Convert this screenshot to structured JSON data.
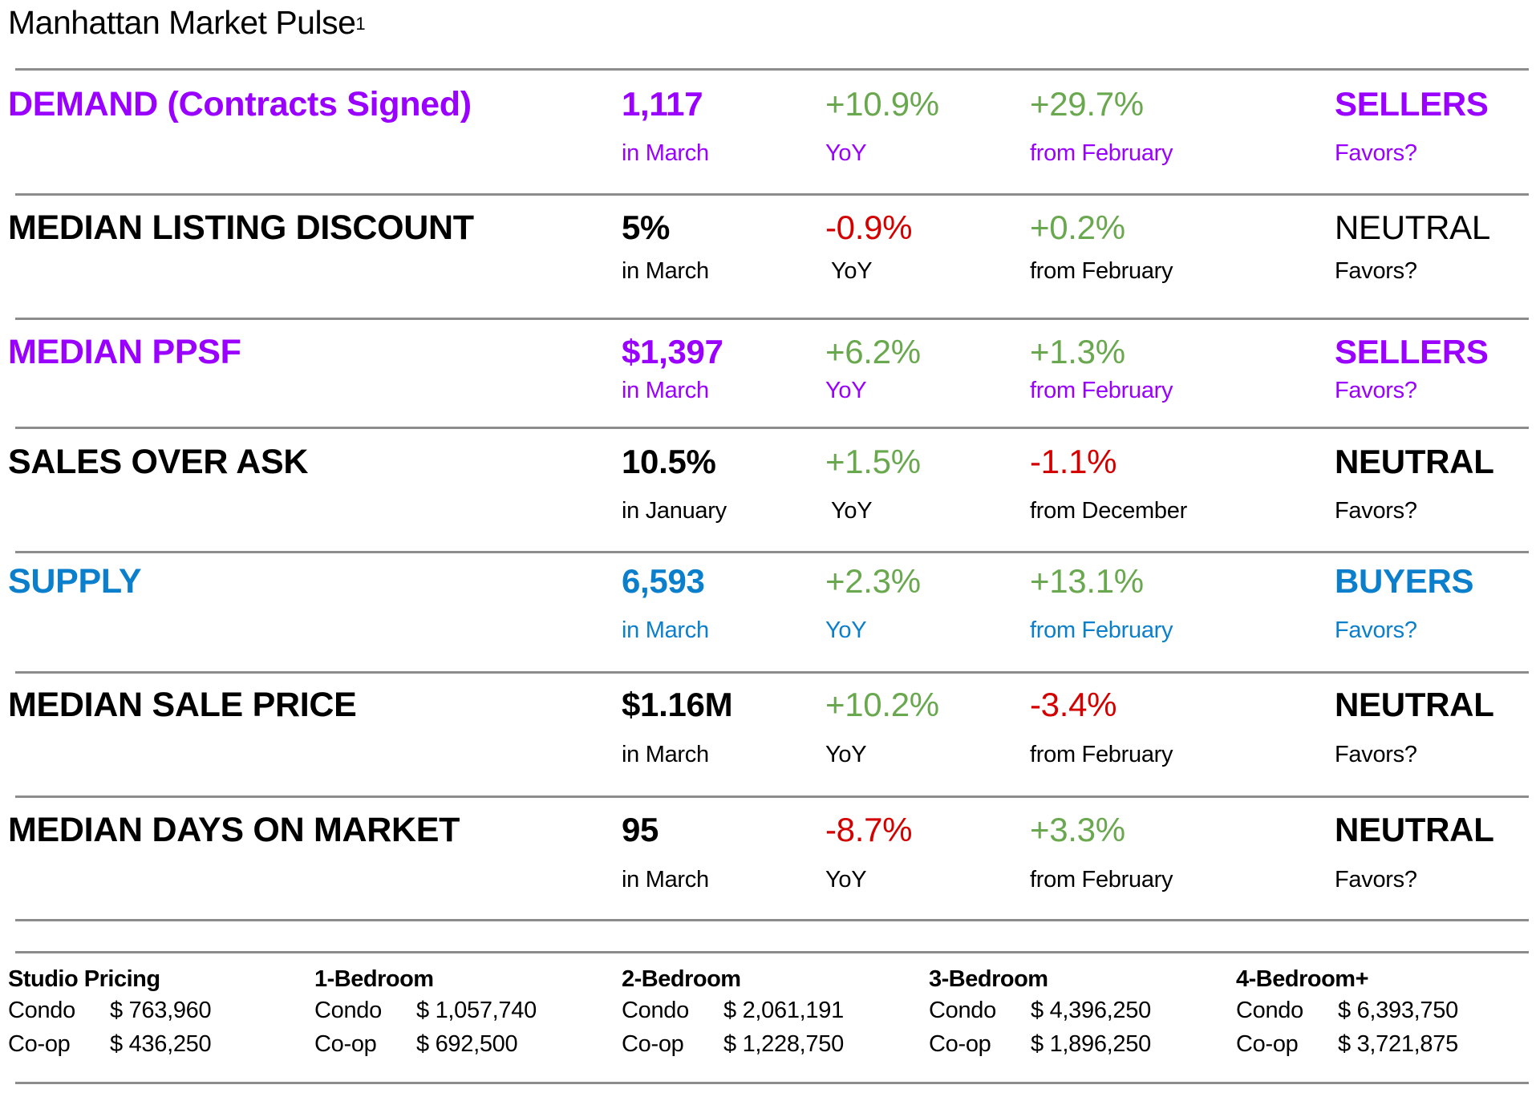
{
  "title": "Manhattan Market Pulse",
  "title_footnote": "1",
  "colors": {
    "purple": "#9900ff",
    "blue": "#0b7fcc",
    "green": "#6aa84f",
    "red": "#d40000",
    "black": "#000000"
  },
  "metrics": [
    {
      "label": "DEMAND (Contracts Signed)",
      "value": "1,117",
      "period": "in March",
      "yoy": "+10.9%",
      "yoy_label": "YoY",
      "mom": "+29.7%",
      "mom_label": "from February",
      "favors": "SELLERS",
      "favors_label": "Favors?"
    },
    {
      "label": "MEDIAN LISTING DISCOUNT",
      "value": "5%",
      "period": "in March",
      "yoy": "-0.9%",
      "yoy_label": "YoY",
      "mom": "+0.2%",
      "mom_label": "from February",
      "favors": "NEUTRAL",
      "favors_label": "Favors?"
    },
    {
      "label": "MEDIAN PPSF",
      "value": "$1,397",
      "period": "in March",
      "yoy": "+6.2%",
      "yoy_label": "YoY",
      "mom": "+1.3%",
      "mom_label": "from February",
      "favors": "SELLERS",
      "favors_label": "Favors?"
    },
    {
      "label": "SALES OVER ASK",
      "value": "10.5%",
      "period": "in January",
      "yoy": "+1.5%",
      "yoy_label": "YoY",
      "mom": "-1.1%",
      "mom_label": "from December",
      "favors": "NEUTRAL",
      "favors_label": "Favors?"
    },
    {
      "label": "SUPPLY",
      "value": "6,593",
      "period": "in March",
      "yoy": "+2.3%",
      "yoy_label": "YoY",
      "mom": "+13.1%",
      "mom_label": "from February",
      "favors": "BUYERS",
      "favors_label": "Favors?"
    },
    {
      "label": "MEDIAN SALE PRICE",
      "value": "$1.16M",
      "period": "in March",
      "yoy": "+10.2%",
      "yoy_label": "YoY",
      "mom": "-3.4%",
      "mom_label": "from February",
      "favors": "NEUTRAL",
      "favors_label": "Favors?"
    },
    {
      "label": "MEDIAN DAYS ON MARKET",
      "value": "95",
      "period": "in March",
      "yoy": "-8.7%",
      "yoy_label": "YoY",
      "mom": "+3.3%",
      "mom_label": "from February",
      "favors": "NEUTRAL",
      "favors_label": "Favors?"
    }
  ],
  "pricing": [
    {
      "heading": "Studio Pricing",
      "condo_label": "Condo",
      "condo": "$ 763,960",
      "coop_label": "Co-op",
      "coop": "$ 436,250"
    },
    {
      "heading": "1-Bedroom",
      "condo_label": "Condo",
      "condo": "$ 1,057,740",
      "coop_label": "Co-op",
      "coop": "$ 692,500"
    },
    {
      "heading": "2-Bedroom",
      "condo_label": "Condo",
      "condo": "$ 2,061,191",
      "coop_label": "Co-op",
      "coop": "$ 1,228,750"
    },
    {
      "heading": "3-Bedroom",
      "condo_label": "Condo",
      "condo": "$ 4,396,250",
      "coop_label": "Co-op",
      "coop": "$ 1,896,250"
    },
    {
      "heading": "4-Bedroom+",
      "condo_label": "Condo",
      "condo": "$ 6,393,750",
      "coop_label": "Co-op",
      "coop": "$ 3,721,875"
    }
  ]
}
